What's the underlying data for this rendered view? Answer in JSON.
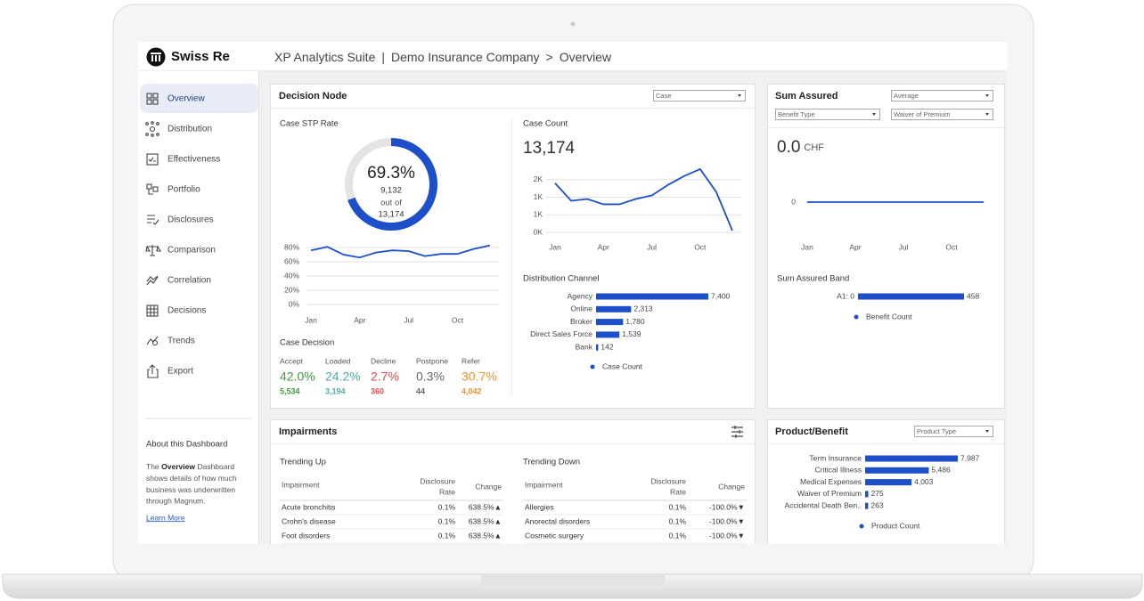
{
  "header": {
    "brand": "Swiss Re",
    "app": "XP Analytics Suite",
    "separator": "|",
    "company": "Demo Insurance Company",
    "arrow": ">",
    "page": "Overview"
  },
  "nav": {
    "items": [
      "Overview",
      "Distribution",
      "Effectiveness",
      "Portfolio",
      "Disclosures",
      "Comparison",
      "Correlation",
      "Decisions",
      "Trends",
      "Export"
    ],
    "selected": 0
  },
  "about": {
    "title": "About this Dashboard",
    "lead": "The",
    "highlight": "Overview",
    "lines": [
      "Dashboard",
      "shows details of how much",
      "business was underwritten",
      "through Magnum."
    ],
    "link": "Learn More"
  },
  "decision_node": {
    "title": "Decision Node",
    "dropdown": "Case",
    "stp_rate": {
      "type": "donut",
      "title": "Case STP Rate",
      "value": 69.3,
      "value_label": "69.3%",
      "numerator": "9,132",
      "out_of": "out of",
      "denominator": "13,174",
      "color": "#1c4fc9",
      "track_color": "#e4e4e4"
    },
    "stp_trend": {
      "type": "line",
      "categories": [
        "Jan",
        null,
        null,
        "Apr",
        null,
        null,
        "Jul",
        null,
        null,
        "Oct",
        null,
        null
      ],
      "values": [
        76,
        81,
        70,
        66,
        73,
        76,
        75,
        68,
        71,
        71,
        78,
        83
      ],
      "ylim": [
        0,
        90
      ],
      "yticks": [
        {
          "value": 0,
          "label": "0%"
        },
        {
          "value": 20,
          "label": "20%"
        },
        {
          "value": 40,
          "label": "40%"
        },
        {
          "value": 60,
          "label": "60%"
        },
        {
          "value": 80,
          "label": "80%"
        }
      ],
      "grid": true,
      "color": "#1c4fc9"
    },
    "case_decision": {
      "title": "Case Decision",
      "items": [
        {
          "label": "Accept",
          "rate": "42.0%",
          "count": "5,534",
          "color": "#3f9b3f"
        },
        {
          "label": "Loaded",
          "rate": "24.2%",
          "count": "3,194",
          "color": "#4daea3"
        },
        {
          "label": "Decline",
          "rate": "2.7%",
          "count": "360",
          "color": "#e04a4a"
        },
        {
          "label": "Postpone",
          "rate": "0.3%",
          "count": "44",
          "color": "#666666"
        },
        {
          "label": "Refer",
          "rate": "30.7%",
          "count": "4,042",
          "color": "#f0922e"
        }
      ]
    },
    "case_count": {
      "type": "line",
      "title": "Case Count",
      "total": "13,174",
      "categories": [
        "Jan",
        null,
        null,
        "Apr",
        null,
        null,
        "Jul",
        null,
        null,
        "Oct",
        null,
        null
      ],
      "values": [
        1400,
        900,
        950,
        800,
        800,
        950,
        1050,
        1350,
        1600,
        1800,
        1150,
        50
      ],
      "ylim": [
        0,
        1900
      ],
      "yticks": [
        {
          "value": 0,
          "label": "0K"
        },
        {
          "value": 500,
          "label": "1K"
        },
        {
          "value": 1000,
          "label": "1K"
        },
        {
          "value": 1500,
          "label": "2K"
        }
      ],
      "grid": true,
      "color": "#1c4fc9"
    },
    "distribution_channel": {
      "type": "bar",
      "title": "Distribution Channel",
      "categories": [
        "Agency",
        "Online",
        "Broker",
        "Direct Sales Force",
        "Bank"
      ],
      "values": [
        7400,
        2313,
        1780,
        1539,
        142
      ],
      "value_labels": [
        "7,400",
        "2,313",
        "1,780",
        "1,539",
        "142"
      ],
      "legend": "Case Count",
      "color": "#1c4fc9"
    }
  },
  "sum_assured": {
    "title": "Sum Assured",
    "dropdowns": [
      "Average",
      "Benefit Type",
      "Waiver of Premium"
    ],
    "total": "0.0",
    "unit": "CHF",
    "trend": {
      "type": "line",
      "categories": [
        "Jan",
        null,
        null,
        "Apr",
        null,
        null,
        "Jul",
        null,
        null,
        "Oct",
        null,
        null
      ],
      "values": [
        0,
        0,
        0,
        0,
        0,
        0,
        0,
        0,
        0,
        0,
        0,
        0
      ],
      "ylim": [
        -1,
        1
      ],
      "yticks": [
        0
      ],
      "grid": true,
      "color": "#1c4fc9"
    },
    "band": {
      "type": "bar",
      "title": "Sum Assured Band",
      "categories": [
        "A1: 0"
      ],
      "values": [
        458
      ],
      "value_labels": [
        "458"
      ],
      "legend": "Benefit Count",
      "color": "#1c4fc9"
    }
  },
  "impairments": {
    "title": "Impairments",
    "trending_up": {
      "title": "Trending Up",
      "columns": {
        "impairment": "Impairment",
        "rate": [
          "Disclosure",
          "Rate"
        ],
        "change": "Change"
      },
      "rows": [
        [
          "Acute bronchitis",
          "0.1%",
          "638.5%▲"
        ],
        [
          "Crohn's disease",
          "0.1%",
          "638.5%▲"
        ],
        [
          "Foot disorders",
          "0.1%",
          "638.5%▲"
        ]
      ]
    },
    "trending_down": {
      "title": "Trending Down",
      "columns": {
        "impairment": "Impairment",
        "rate": [
          "Disclosure",
          "Rate"
        ],
        "change": "Change"
      },
      "rows": [
        [
          "Allergies",
          "0.1%",
          "-100.0%▼"
        ],
        [
          "Anorectal disorders",
          "0.1%",
          "-100.0%▼"
        ],
        [
          "Cosmetic surgery",
          "0.1%",
          "-100.0%▼"
        ]
      ]
    }
  },
  "product_benefit": {
    "title": "Product/Benefit",
    "dropdown": "Product Type",
    "chart": {
      "type": "bar",
      "categories": [
        "Term Insurance",
        "Critical Illness",
        "Medical Expenses",
        "Waiver of Premium",
        "Accidental Death Ben.."
      ],
      "values": [
        7987,
        5486,
        4003,
        275,
        263
      ],
      "value_labels": [
        "7,987",
        "5,486",
        "4,003",
        "275",
        "263"
      ],
      "legend": "Product Count",
      "color": "#1c4fc9"
    }
  }
}
